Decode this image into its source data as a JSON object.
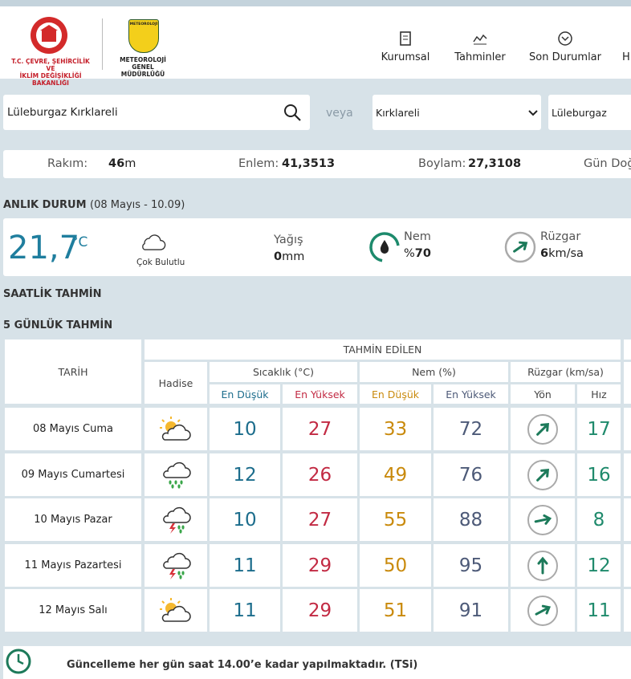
{
  "header": {
    "ministry_line1": "T.C. ÇEVRE, ŞEHİRCİLİK VE",
    "ministry_line2": "İKLİM DEĞİŞİKLİĞİ BAKANLIĞI",
    "badge": "METEOROLOJİ",
    "agency_line1": "METEOROLOJİ",
    "agency_line2": "GENEL MÜDÜRLÜĞÜ",
    "nav": [
      "Kurumsal",
      "Tahminler",
      "Son Durumlar",
      "H"
    ]
  },
  "search": {
    "query": "Lüleburgaz Kırklareli",
    "or": "veya",
    "province": "Kırklareli",
    "district": "Lüleburgaz"
  },
  "location": {
    "altitude_label": "Rakım:",
    "altitude": 46,
    "altitude_unit": "m",
    "latitude_label": "Enlem:",
    "latitude": "41,3513",
    "longitude_label": "Boylam:",
    "longitude": "27,3108",
    "sunrise_label": "Gün Doğ"
  },
  "current": {
    "title": "ANLIK DURUM",
    "time": "(08 Mayıs - 10.09)",
    "temperature": "21,7",
    "temperature_unit": "°C",
    "condition": "Çok Bulutlu",
    "rain_label": "Yağış",
    "rain": 0,
    "rain_unit": "mm",
    "humidity_label": "Nem",
    "humidity_prefix": "%",
    "humidity": 70,
    "wind_label": "Rüzgar",
    "wind": 6,
    "wind_unit": "km/sa"
  },
  "hourly_title": "SAATLİK TAHMİN",
  "forecast": {
    "title": "5 GÜNLÜK TAHMİN",
    "columns": {
      "date": "TARİH",
      "group": "TAHMİN EDİLEN",
      "event": "Hadise",
      "temperature": "Sıcaklık (°C)",
      "humidity": "Nem (%)",
      "wind": "Rüzgar (km/sa)"
    },
    "subheaders": [
      "En Düşük",
      "En Yüksek",
      "En Düşük",
      "En Yüksek",
      "Yön",
      "Hız"
    ],
    "rows": [
      {
        "date": "08 Mayıs Cuma",
        "temp_min": 10,
        "temp_max": 27,
        "humidity_min": 33,
        "humidity_max": 72,
        "wind_speed": 17
      },
      {
        "date": "09 Mayıs Cumartesi",
        "temp_min": 12,
        "temp_max": 26,
        "humidity_min": 49,
        "humidity_max": 76,
        "wind_speed": 16
      },
      {
        "date": "10 Mayıs Pazar",
        "temp_min": 10,
        "temp_max": 27,
        "humidity_min": 55,
        "humidity_max": 88,
        "wind_speed": 8
      },
      {
        "date": "11 Mayıs Pazartesi",
        "temp_min": 11,
        "temp_max": 29,
        "humidity_min": 50,
        "humidity_max": 95,
        "wind_speed": 12
      },
      {
        "date": "12 Mayıs Salı",
        "temp_min": 11,
        "temp_max": 29,
        "humidity_min": 51,
        "humidity_max": 91,
        "wind_speed": 11
      }
    ]
  },
  "footer_note": "Güncelleme her gün saat 14.00’e kadar yapılmaktadır. (TSi)"
}
